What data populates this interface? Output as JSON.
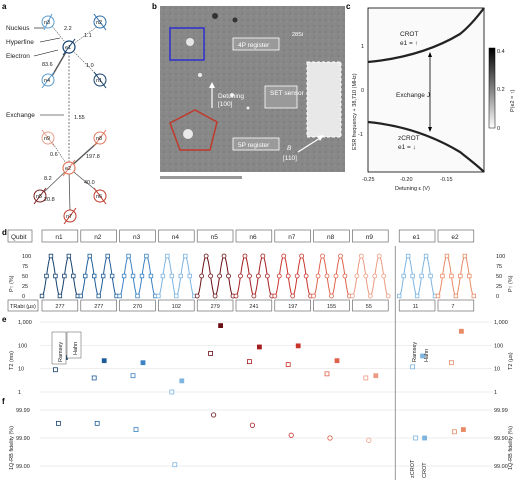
{
  "panel_labels": {
    "a": "a",
    "b": "b",
    "c": "c",
    "d": "d",
    "e": "e",
    "f": "f"
  },
  "panel_a": {
    "labels": {
      "nucleus": "Nucleus",
      "hyperfine": "Hyperfine",
      "electron": "Electron",
      "exchange": "Exchange"
    },
    "electrons": [
      "e1",
      "e2"
    ],
    "nuclei_top": [
      "n3",
      "n2",
      "n4",
      "n1"
    ],
    "nuclei_bottom": [
      "n9",
      "n8",
      "n5",
      "n6",
      "n7"
    ],
    "couplings_top": {
      "n3": "2.2",
      "n2": "1.1",
      "n4": "83.6",
      "n1": "1.0"
    },
    "exchange_value": "1.55",
    "couplings_bottom": {
      "n9": "0.6",
      "n8": "197.8",
      "n5": "8.2",
      "n6": "20.8",
      "n7": "40.0"
    },
    "colors": {
      "e1": "#14406e",
      "e2": "#e0795e",
      "nucleus_dark": "#14406e",
      "nucleus_light": "#5b9dd0",
      "nucleus_red": "#c0392b"
    }
  },
  "panel_b": {
    "isotope": "28Si",
    "register_4p": "4P register",
    "register_5p": "5P register",
    "set_sensor": "SET sensor",
    "detuning": "Detuning",
    "detuning_dir": "[100]",
    "b_field": "B",
    "b_dir": "[110]"
  },
  "panel_c": {
    "ylabel": "ESR frequency + 38,710 (MHz)",
    "xlabel": "Detuning ε (V)",
    "xticks": [
      "-0.25",
      "-0.20",
      "-0.15"
    ],
    "yticks": [
      "1",
      "0",
      "-1"
    ],
    "crot": "CROT",
    "crot_state": "e1 = ↑",
    "zcrot": "zCROT",
    "zcrot_state": "e1 = ↓",
    "exchange": "Exchange J",
    "cbar_label": "P(e2 = ↑)",
    "cbar_ticks": [
      "0.4",
      "0.2",
      "0"
    ]
  },
  "panel_d": {
    "row_label": "Qubit",
    "qubits": [
      "n1",
      "n2",
      "n3",
      "n4",
      "n5",
      "n6",
      "n7",
      "n8",
      "n9",
      "e1",
      "e2"
    ],
    "ylabel_left": "P↑ (%)",
    "ylabel_right": "P↑ (%)",
    "yticks": [
      "100",
      "75",
      "50",
      "25",
      "0"
    ],
    "trabi_label": "TRabi (µs)",
    "trabi": [
      "277",
      "277",
      "270",
      "102",
      "279",
      "241",
      "197",
      "155",
      "55",
      "11",
      "7"
    ]
  },
  "panel_e": {
    "ylabel_left": "T2 (ms)",
    "ylabel_right": "T2 (µs)",
    "yticks_left": [
      "1,000",
      "100",
      "10",
      "1"
    ],
    "yticks_right": [
      "1,000",
      "100",
      "10",
      "1"
    ],
    "legend_nuc": [
      "Ramsey",
      "Hahn"
    ],
    "legend_el": [
      "Ramsey",
      "Hahn"
    ],
    "ramsey": [
      9,
      4,
      5,
      1,
      45,
      20,
      15,
      6,
      4,
      12,
      18
    ],
    "hahn": [
      30,
      22,
      18,
      3,
      700,
      85,
      95,
      22,
      5,
      35,
      400
    ]
  },
  "panel_f": {
    "ylabel_left": "1Q-RB fidelity (%)",
    "ylabel_right": "1Q-RB fidelity (%)",
    "yticks_left": [
      "99.99",
      "99.90",
      "99.00"
    ],
    "yticks_right": [
      "99.99",
      "99.90",
      "99.00"
    ],
    "legend_el": [
      "zCROT",
      "CROT"
    ],
    "fidelity": [
      99.97,
      99.97,
      99.95,
      99.1,
      99.985,
      99.965,
      99.92,
      99.9,
      99.88,
      99.9,
      99.94
    ],
    "fidelity_crot": [
      null,
      null,
      null,
      null,
      null,
      null,
      null,
      null,
      null,
      99.9,
      99.95
    ]
  }
}
